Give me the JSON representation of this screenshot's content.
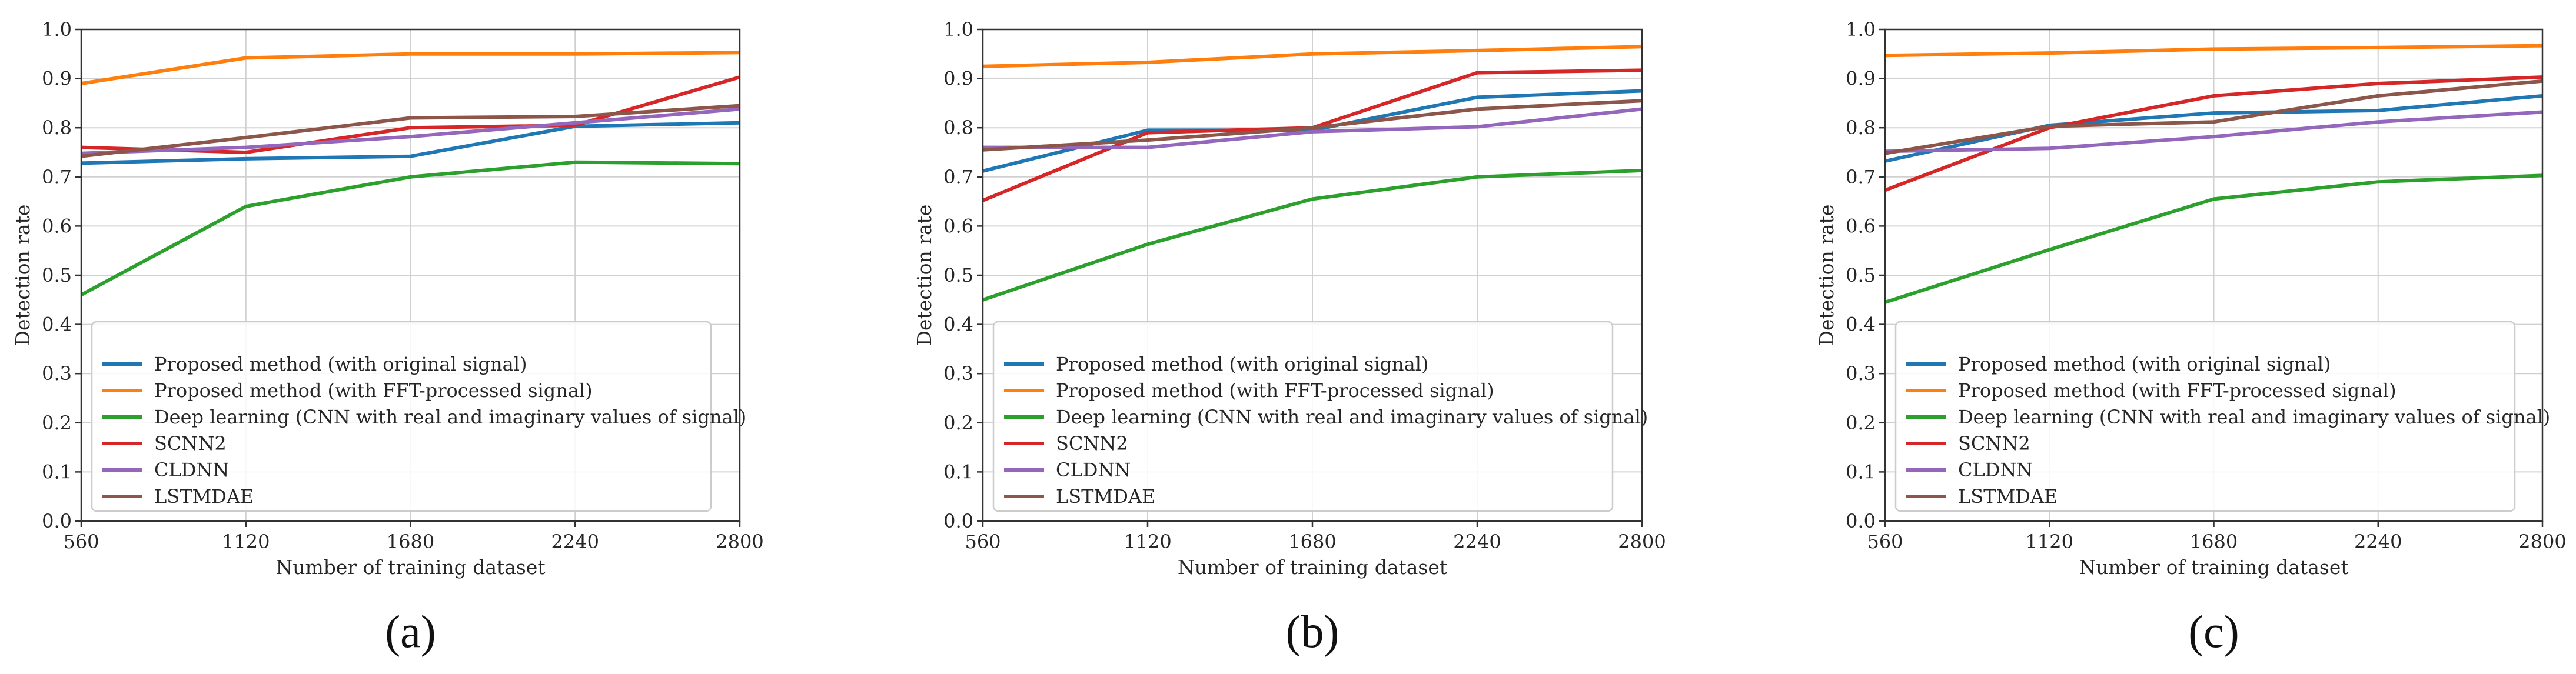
{
  "chart_data": [
    {
      "type": "line",
      "panel": "(a)",
      "xlabel": "Number of training dataset",
      "ylabel": "Detection rate",
      "xlim": [
        560,
        2800
      ],
      "ylim": [
        0.0,
        1.0
      ],
      "grid": true,
      "legend_position": "lower-left",
      "x": [
        560,
        1120,
        1680,
        2240,
        2800
      ],
      "xtick_labels": [
        "560",
        "1120",
        "1680",
        "2240",
        "2800"
      ],
      "yticks": [
        0.0,
        0.1,
        0.2,
        0.3,
        0.4,
        0.5,
        0.6,
        0.7,
        0.8,
        0.9,
        1.0
      ],
      "ytick_labels": [
        "0.0",
        "0.1",
        "0.2",
        "0.3",
        "0.4",
        "0.5",
        "0.6",
        "0.7",
        "0.8",
        "0.9",
        "1.0"
      ],
      "series": [
        {
          "name": "Proposed method (with original signal)",
          "color": "#1f77b4",
          "values": [
            0.728,
            0.737,
            0.742,
            0.803,
            0.81
          ]
        },
        {
          "name": "Proposed method (with FFT-processed signal)",
          "color": "#ff7f0e",
          "values": [
            0.89,
            0.942,
            0.95,
            0.95,
            0.953
          ]
        },
        {
          "name": "Deep learning (CNN with real and imaginary values of signal)",
          "color": "#2ca02c",
          "values": [
            0.46,
            0.64,
            0.7,
            0.73,
            0.727
          ]
        },
        {
          "name": "SCNN2",
          "color": "#d62728",
          "values": [
            0.76,
            0.75,
            0.8,
            0.805,
            0.903
          ]
        },
        {
          "name": "CLDNN",
          "color": "#9467bd",
          "values": [
            0.748,
            0.76,
            0.782,
            0.81,
            0.838
          ]
        },
        {
          "name": "LSTMDAE",
          "color": "#8c564b",
          "values": [
            0.742,
            0.78,
            0.82,
            0.823,
            0.845
          ]
        }
      ]
    },
    {
      "type": "line",
      "panel": "(b)",
      "xlabel": "Number of training dataset",
      "ylabel": "Detection rate",
      "xlim": [
        560,
        2800
      ],
      "ylim": [
        0.0,
        1.0
      ],
      "grid": true,
      "legend_position": "lower-left",
      "x": [
        560,
        1120,
        1680,
        2240,
        2800
      ],
      "xtick_labels": [
        "560",
        "1120",
        "1680",
        "2240",
        "2800"
      ],
      "yticks": [
        0.0,
        0.1,
        0.2,
        0.3,
        0.4,
        0.5,
        0.6,
        0.7,
        0.8,
        0.9,
        1.0
      ],
      "ytick_labels": [
        "0.0",
        "0.1",
        "0.2",
        "0.3",
        "0.4",
        "0.5",
        "0.6",
        "0.7",
        "0.8",
        "0.9",
        "1.0"
      ],
      "series": [
        {
          "name": "Proposed method (with original signal)",
          "color": "#1f77b4",
          "values": [
            0.712,
            0.795,
            0.795,
            0.862,
            0.875
          ]
        },
        {
          "name": "Proposed method (with FFT-processed signal)",
          "color": "#ff7f0e",
          "values": [
            0.925,
            0.933,
            0.95,
            0.957,
            0.965
          ]
        },
        {
          "name": "Deep learning (CNN with real and imaginary values of signal)",
          "color": "#2ca02c",
          "values": [
            0.45,
            0.563,
            0.655,
            0.7,
            0.713
          ]
        },
        {
          "name": "SCNN2",
          "color": "#d62728",
          "values": [
            0.652,
            0.79,
            0.8,
            0.912,
            0.917
          ]
        },
        {
          "name": "CLDNN",
          "color": "#9467bd",
          "values": [
            0.76,
            0.76,
            0.792,
            0.802,
            0.838
          ]
        },
        {
          "name": "LSTMDAE",
          "color": "#8c564b",
          "values": [
            0.755,
            0.775,
            0.8,
            0.838,
            0.855
          ]
        }
      ]
    },
    {
      "type": "line",
      "panel": "(c)",
      "xlabel": "Number of training dataset",
      "ylabel": "Detection rate",
      "xlim": [
        560,
        2800
      ],
      "ylim": [
        0.0,
        1.0
      ],
      "grid": true,
      "legend_position": "lower-left",
      "x": [
        560,
        1120,
        1680,
        2240,
        2800
      ],
      "xtick_labels": [
        "560",
        "1120",
        "1680",
        "2240",
        "2800"
      ],
      "yticks": [
        0.0,
        0.1,
        0.2,
        0.3,
        0.4,
        0.5,
        0.6,
        0.7,
        0.8,
        0.9,
        1.0
      ],
      "ytick_labels": [
        "0.0",
        "0.1",
        "0.2",
        "0.3",
        "0.4",
        "0.5",
        "0.6",
        "0.7",
        "0.8",
        "0.9",
        "1.0"
      ],
      "series": [
        {
          "name": "Proposed method (with original signal)",
          "color": "#1f77b4",
          "values": [
            0.732,
            0.805,
            0.83,
            0.835,
            0.865
          ]
        },
        {
          "name": "Proposed method (with FFT-processed signal)",
          "color": "#ff7f0e",
          "values": [
            0.947,
            0.952,
            0.96,
            0.963,
            0.967
          ]
        },
        {
          "name": "Deep learning (CNN with real and imaginary values of signal)",
          "color": "#2ca02c",
          "values": [
            0.445,
            0.552,
            0.655,
            0.69,
            0.703
          ]
        },
        {
          "name": "SCNN2",
          "color": "#d62728",
          "values": [
            0.673,
            0.8,
            0.865,
            0.89,
            0.903
          ]
        },
        {
          "name": "CLDNN",
          "color": "#9467bd",
          "values": [
            0.752,
            0.758,
            0.782,
            0.812,
            0.832
          ]
        },
        {
          "name": "LSTMDAE",
          "color": "#8c564b",
          "values": [
            0.748,
            0.803,
            0.812,
            0.865,
            0.895
          ]
        }
      ]
    }
  ]
}
